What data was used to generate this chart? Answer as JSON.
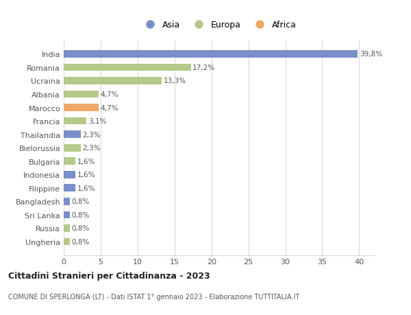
{
  "categories": [
    "India",
    "Romania",
    "Ucraina",
    "Albania",
    "Marocco",
    "Francia",
    "Thailandia",
    "Bielorussia",
    "Bulgaria",
    "Indonesia",
    "Filippine",
    "Bangladesh",
    "Sri Lanka",
    "Russia",
    "Ungheria"
  ],
  "values": [
    39.8,
    17.2,
    13.3,
    4.7,
    4.7,
    3.1,
    2.3,
    2.3,
    1.6,
    1.6,
    1.6,
    0.8,
    0.8,
    0.8,
    0.8
  ],
  "labels": [
    "39,8%",
    "17,2%",
    "13,3%",
    "4,7%",
    "4,7%",
    "3,1%",
    "2,3%",
    "2,3%",
    "1,6%",
    "1,6%",
    "1,6%",
    "0,8%",
    "0,8%",
    "0,8%",
    "0,8%"
  ],
  "continents": [
    "Asia",
    "Europa",
    "Europa",
    "Europa",
    "Africa",
    "Europa",
    "Asia",
    "Europa",
    "Europa",
    "Asia",
    "Asia",
    "Asia",
    "Asia",
    "Europa",
    "Europa"
  ],
  "colors": {
    "Asia": "#7a8fc8",
    "Europa": "#b5c98a",
    "Africa": "#f0a868"
  },
  "xlim": [
    0,
    42
  ],
  "xticks": [
    0,
    5,
    10,
    15,
    20,
    25,
    30,
    35,
    40
  ],
  "title": "Cittadini Stranieri per Cittadinanza - 2023",
  "subtitle": "COMUNE DI SPERLONGA (LT) - Dati ISTAT 1° gennaio 2023 - Elaborazione TUTTITALIA.IT",
  "background_color": "#ffffff",
  "grid_color": "#d8d8d8",
  "bar_height": 0.55,
  "legend_order": [
    "Asia",
    "Europa",
    "Africa"
  ]
}
